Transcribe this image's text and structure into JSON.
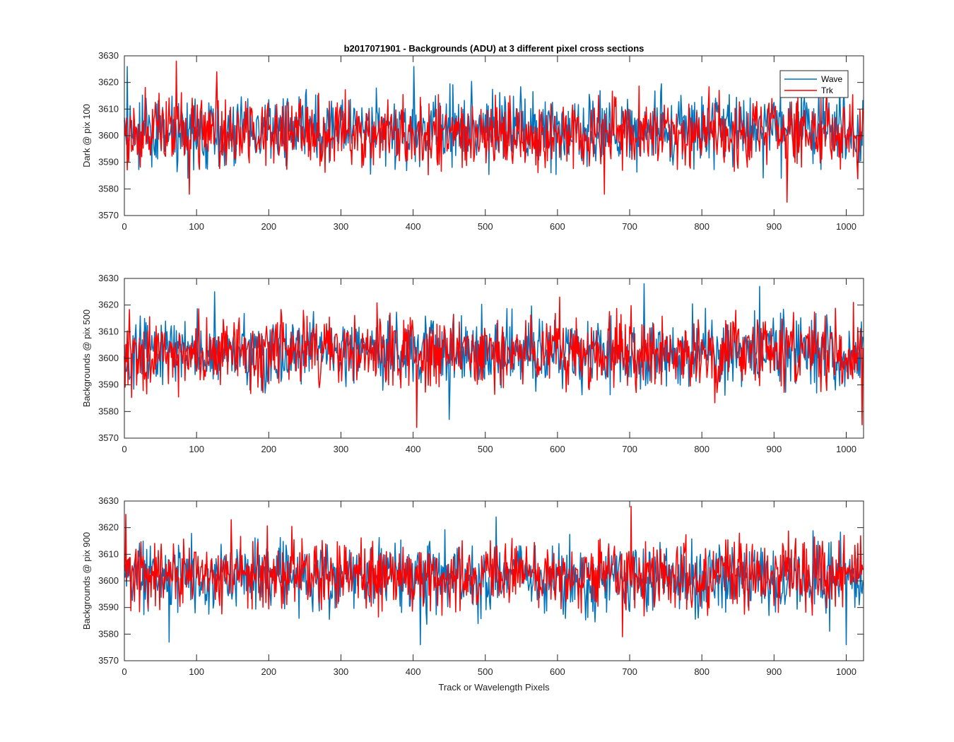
{
  "figure": {
    "title": "b2017071901 - Backgrounds (ADU) at 3 different pixel cross sections",
    "xlabel": "Track or Wavelength Pixels"
  },
  "legend": {
    "items": [
      "Wave",
      "Trk"
    ],
    "placement": "top-right"
  },
  "colors": {
    "wave": "#0072BD",
    "trk": "#FF0000",
    "axes": "#262626"
  },
  "chart_data": [
    {
      "type": "line",
      "ylabel": "Dark @ pix 100",
      "xlim": [
        0,
        1024
      ],
      "ylim": [
        3570,
        3630
      ],
      "xticks": [
        0,
        100,
        200,
        300,
        400,
        500,
        600,
        700,
        800,
        900,
        1000
      ],
      "yticks": [
        3570,
        3580,
        3590,
        3600,
        3610,
        3620,
        3630
      ],
      "series": [
        {
          "name": "Wave",
          "mean": 3602,
          "sd": 6.5,
          "peaks": [
            [
              4,
              3626
            ],
            [
              401,
              3626
            ],
            [
              88,
              3584
            ],
            [
              910,
              3584
            ]
          ]
        },
        {
          "name": "Trk",
          "mean": 3601,
          "sd": 6.5,
          "peaks": [
            [
              72,
              3628
            ],
            [
              128,
              3624
            ],
            [
              90,
              3578
            ],
            [
              918,
              3575
            ],
            [
              665,
              3578
            ]
          ]
        }
      ],
      "legend": true
    },
    {
      "type": "line",
      "ylabel": "Backgrounds @ pix 500",
      "xlim": [
        0,
        1024
      ],
      "ylim": [
        3570,
        3630
      ],
      "xticks": [
        0,
        100,
        200,
        300,
        400,
        500,
        600,
        700,
        800,
        900,
        1000
      ],
      "yticks": [
        3570,
        3580,
        3590,
        3600,
        3610,
        3620,
        3630
      ],
      "series": [
        {
          "name": "Wave",
          "mean": 3602,
          "sd": 6.5,
          "peaks": [
            [
              720,
              3628
            ],
            [
              880,
              3627
            ],
            [
              125,
              3625
            ],
            [
              450,
              3577
            ]
          ]
        },
        {
          "name": "Trk",
          "mean": 3602,
          "sd": 6.5,
          "peaks": [
            [
              405,
              3574
            ],
            [
              1022,
              3575
            ],
            [
              1010,
              3621
            ],
            [
              603,
              3623
            ]
          ]
        }
      ],
      "legend": false
    },
    {
      "type": "line",
      "ylabel": "Backgrounds @ pix 900",
      "xlim": [
        0,
        1024
      ],
      "ylim": [
        3570,
        3630
      ],
      "xticks": [
        0,
        100,
        200,
        300,
        400,
        500,
        600,
        700,
        800,
        900,
        1000
      ],
      "yticks": [
        3570,
        3580,
        3590,
        3600,
        3610,
        3620,
        3630
      ],
      "series": [
        {
          "name": "Wave",
          "mean": 3601,
          "sd": 6.5,
          "peaks": [
            [
              515,
              3624
            ],
            [
              410,
              3576
            ],
            [
              62,
              3577
            ],
            [
              1000,
              3576
            ]
          ]
        },
        {
          "name": "Trk",
          "mean": 3602,
          "sd": 6.5,
          "peaks": [
            [
              702,
              3628
            ],
            [
              2,
              3625
            ],
            [
              148,
              3623
            ],
            [
              690,
              3579
            ]
          ]
        }
      ],
      "legend": false
    }
  ]
}
